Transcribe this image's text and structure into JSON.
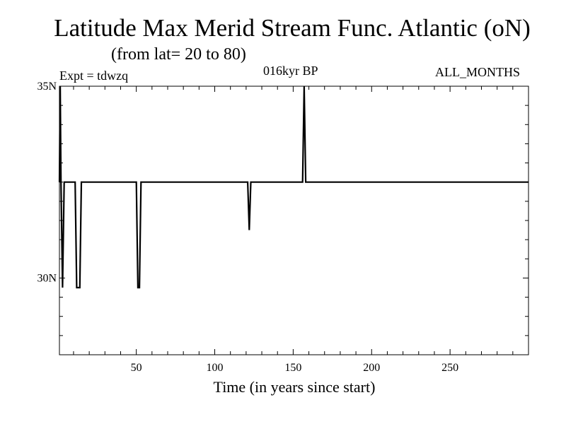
{
  "chart_data": {
    "type": "line",
    "title": "Latitude Max Merid Stream Func. Atlantic (oN)",
    "subtitle": "(from lat= 20 to 80)",
    "experiment": "Expt = tdwzq",
    "period": "016kyr BP",
    "season": "ALL_MONTHS",
    "xlabel": "Time (in years since start)",
    "ylabel": "",
    "xlim": [
      1,
      300
    ],
    "ylim": [
      28.0,
      35.0
    ],
    "x_ticks": [
      50,
      100,
      150,
      200,
      250
    ],
    "y_ticks": [
      30,
      35
    ],
    "y_tick_labels": [
      "30N",
      "35N"
    ],
    "grid": false,
    "series": [
      {
        "color": "#000000",
        "x": [
          1,
          1.5,
          2,
          3,
          4,
          5,
          6,
          7,
          8,
          9,
          10,
          11,
          12,
          13,
          14,
          15,
          16,
          17,
          18,
          19,
          20,
          30,
          40,
          49,
          50,
          51,
          52,
          53,
          54,
          60,
          80,
          100,
          120,
          121,
          122,
          123,
          124,
          125,
          130,
          140,
          150,
          155,
          156,
          157,
          158,
          159,
          160,
          180,
          200,
          220,
          240,
          260,
          280,
          300
        ],
        "y": [
          32.5,
          35.0,
          32.5,
          29.75,
          32.5,
          32.5,
          32.5,
          32.5,
          32.5,
          32.5,
          32.5,
          32.5,
          29.75,
          29.75,
          29.75,
          32.5,
          32.5,
          32.5,
          32.5,
          32.5,
          32.5,
          32.5,
          32.5,
          32.5,
          32.5,
          29.75,
          29.75,
          32.5,
          32.5,
          32.5,
          32.5,
          32.5,
          32.5,
          32.5,
          31.25,
          32.5,
          32.5,
          32.5,
          32.5,
          32.5,
          32.5,
          32.5,
          32.5,
          35.0,
          32.5,
          32.5,
          32.5,
          32.5,
          32.5,
          32.5,
          32.5,
          32.5,
          32.5,
          32.5
        ]
      }
    ]
  }
}
